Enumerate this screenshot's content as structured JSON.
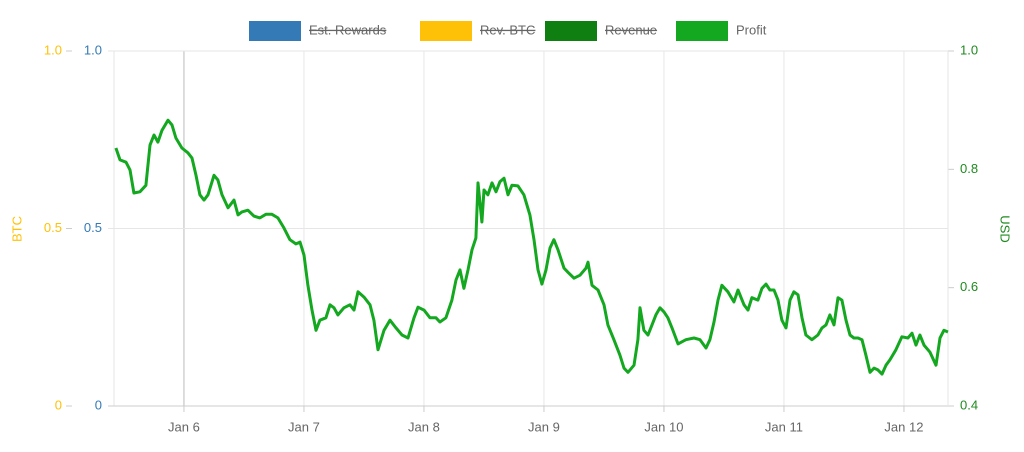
{
  "chart_data": {
    "type": "line",
    "grid": true,
    "legend_position": "top",
    "xlim": [
      5.417,
      12.367
    ],
    "xticks": [
      {
        "value": 6,
        "label": "Jan 6"
      },
      {
        "value": 7,
        "label": "Jan 7"
      },
      {
        "value": 8,
        "label": "Jan 8"
      },
      {
        "value": 9,
        "label": "Jan 9"
      },
      {
        "value": 10,
        "label": "Jan 10"
      },
      {
        "value": 11,
        "label": "Jan 11"
      },
      {
        "value": 12,
        "label": "Jan 12"
      }
    ],
    "ylim": [
      0,
      1
    ],
    "yticks": [
      0,
      0.5,
      {
        "value": 1,
        "label": "1.0"
      }
    ],
    "ycolor": "#337ab7",
    "y3lim": [
      0,
      1
    ],
    "y3ticks": [
      0,
      0.5,
      {
        "value": 1,
        "label": "1.0"
      }
    ],
    "y3label": "BTC",
    "y3color": "#ffc107",
    "y2lim": [
      0.4,
      1
    ],
    "y2ticks": [
      0.4,
      0.6,
      0.8,
      {
        "value": 1,
        "label": "1.0"
      }
    ],
    "y2label": "USD",
    "y2color": "#1e8a1e",
    "series": [
      {
        "name": "Est. Rewards",
        "color": "#337ab7",
        "hidden": true,
        "x": [],
        "values": []
      },
      {
        "name": "Rev. BTC",
        "color": "#ffc107",
        "hidden": true,
        "x": [],
        "values": []
      },
      {
        "name": "Revenue",
        "color": "#0f7f12",
        "hidden": true,
        "x": [],
        "values": []
      },
      {
        "name": "Profit",
        "color": "#13a81f",
        "axis": "y2",
        "x": [
          5.433,
          5.467,
          5.517,
          5.55,
          5.583,
          5.633,
          5.683,
          5.717,
          5.75,
          5.783,
          5.817,
          5.867,
          5.9,
          5.933,
          5.983,
          6.033,
          6.067,
          6.1,
          6.133,
          6.167,
          6.2,
          6.25,
          6.283,
          6.317,
          6.367,
          6.417,
          6.45,
          6.483,
          6.533,
          6.583,
          6.633,
          6.683,
          6.733,
          6.783,
          6.833,
          6.883,
          6.933,
          6.967,
          7.0,
          7.033,
          7.067,
          7.1,
          7.133,
          7.183,
          7.217,
          7.25,
          7.283,
          7.333,
          7.383,
          7.417,
          7.45,
          7.5,
          7.55,
          7.583,
          7.617,
          7.667,
          7.717,
          7.767,
          7.817,
          7.867,
          7.917,
          7.95,
          8.0,
          8.05,
          8.1,
          8.133,
          8.183,
          8.233,
          8.267,
          8.3,
          8.333,
          8.367,
          8.4,
          8.433,
          8.45,
          8.483,
          8.5,
          8.533,
          8.567,
          8.6,
          8.633,
          8.667,
          8.7,
          8.733,
          8.783,
          8.833,
          8.883,
          8.917,
          8.95,
          8.983,
          9.017,
          9.05,
          9.083,
          9.117,
          9.167,
          9.2,
          9.25,
          9.3,
          9.35,
          9.367,
          9.4,
          9.45,
          9.5,
          9.533,
          9.583,
          9.633,
          9.667,
          9.7,
          9.75,
          9.783,
          9.8,
          9.833,
          9.867,
          9.9,
          9.933,
          9.967,
          10.0,
          10.033,
          10.067,
          10.117,
          10.183,
          10.25,
          10.3,
          10.35,
          10.383,
          10.417,
          10.45,
          10.483,
          10.533,
          10.583,
          10.617,
          10.667,
          10.7,
          10.733,
          10.783,
          10.817,
          10.85,
          10.883,
          10.917,
          10.95,
          10.983,
          11.017,
          11.05,
          11.083,
          11.117,
          11.15,
          11.183,
          11.233,
          11.283,
          11.317,
          11.35,
          11.383,
          11.417,
          11.45,
          11.483,
          11.517,
          11.55,
          11.583,
          11.617,
          11.65,
          11.683,
          11.717,
          11.75,
          11.783,
          11.817,
          11.85,
          11.883,
          11.933,
          11.983,
          12.033,
          12.067,
          12.1,
          12.133,
          12.167,
          12.217,
          12.267,
          12.3,
          12.333,
          12.367
        ],
        "values": [
          0.836,
          0.816,
          0.812,
          0.799,
          0.76,
          0.762,
          0.773,
          0.841,
          0.858,
          0.846,
          0.866,
          0.883,
          0.875,
          0.853,
          0.836,
          0.828,
          0.819,
          0.79,
          0.757,
          0.748,
          0.757,
          0.79,
          0.782,
          0.757,
          0.735,
          0.748,
          0.723,
          0.728,
          0.731,
          0.721,
          0.718,
          0.724,
          0.724,
          0.718,
          0.701,
          0.681,
          0.674,
          0.677,
          0.655,
          0.604,
          0.562,
          0.528,
          0.545,
          0.549,
          0.571,
          0.566,
          0.554,
          0.566,
          0.571,
          0.562,
          0.593,
          0.584,
          0.571,
          0.545,
          0.495,
          0.528,
          0.545,
          0.532,
          0.52,
          0.515,
          0.549,
          0.567,
          0.562,
          0.549,
          0.549,
          0.542,
          0.549,
          0.579,
          0.613,
          0.63,
          0.599,
          0.63,
          0.664,
          0.684,
          0.777,
          0.711,
          0.765,
          0.757,
          0.777,
          0.762,
          0.779,
          0.785,
          0.757,
          0.773,
          0.772,
          0.757,
          0.723,
          0.681,
          0.63,
          0.606,
          0.63,
          0.667,
          0.681,
          0.664,
          0.633,
          0.626,
          0.616,
          0.621,
          0.633,
          0.643,
          0.604,
          0.596,
          0.571,
          0.537,
          0.512,
          0.486,
          0.464,
          0.457,
          0.469,
          0.512,
          0.566,
          0.528,
          0.52,
          0.537,
          0.554,
          0.566,
          0.559,
          0.549,
          0.532,
          0.505,
          0.512,
          0.515,
          0.512,
          0.498,
          0.512,
          0.542,
          0.579,
          0.604,
          0.593,
          0.576,
          0.596,
          0.571,
          0.562,
          0.583,
          0.579,
          0.599,
          0.606,
          0.596,
          0.596,
          0.579,
          0.545,
          0.532,
          0.579,
          0.593,
          0.588,
          0.549,
          0.52,
          0.512,
          0.52,
          0.532,
          0.537,
          0.554,
          0.537,
          0.583,
          0.579,
          0.545,
          0.52,
          0.515,
          0.515,
          0.512,
          0.486,
          0.457,
          0.464,
          0.461,
          0.454,
          0.469,
          0.478,
          0.495,
          0.517,
          0.515,
          0.523,
          0.503,
          0.52,
          0.503,
          0.491,
          0.469,
          0.515,
          0.528,
          0.525
        ]
      }
    ]
  }
}
